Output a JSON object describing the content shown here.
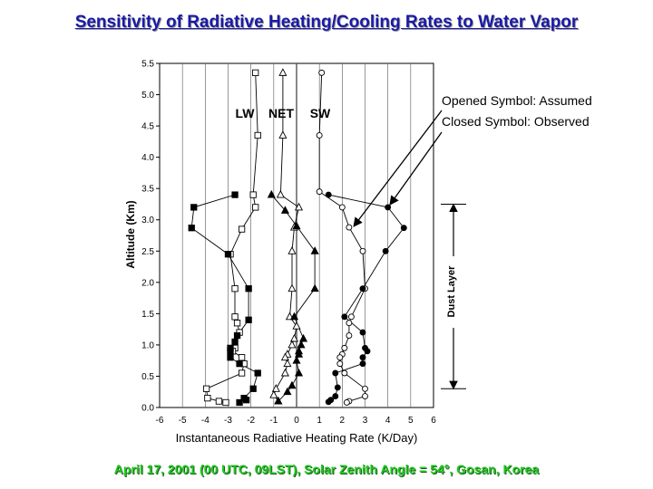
{
  "slide": {
    "title": "Sensitivity of Radiative Heating/Cooling Rates to Water Vapor",
    "footer": "April 17, 2001 (00 UTC, 09LST), Solar Zenith Angle = 54°, Gosan, Korea"
  },
  "colors": {
    "title": "#1a1aa8",
    "footer": "#22c822",
    "ink": "#000000"
  },
  "chart_data": {
    "type": "line",
    "xlabel": "Instantaneous Radiative Heating Rate (K/Day)",
    "ylabel": "Altitude (Km)",
    "xlim": [
      -6,
      6
    ],
    "ylim": [
      0,
      5.5
    ],
    "xticks": [
      "-6",
      "-5",
      "-4",
      "-3",
      "-2",
      "-1",
      "0",
      "1",
      "2",
      "3",
      "4",
      "5",
      "6"
    ],
    "yticks": [
      "0.0",
      "0.5",
      "1.0",
      "1.5",
      "2.0",
      "2.5",
      "3.0",
      "3.5",
      "4.0",
      "4.5",
      "5.0",
      "5.5"
    ],
    "grid": "vertical",
    "group_labels": [
      "LW",
      "NET",
      "SW"
    ],
    "legend": [
      "Opened Symbol: Assumed",
      "Closed Symbol: Observed"
    ],
    "dust_layer": {
      "label": "Dust Layer",
      "from": 0.3,
      "to": 3.25
    },
    "series": [
      {
        "marker": "square",
        "filled": false,
        "points": [
          [
            -1.8,
            5.35
          ],
          [
            -1.7,
            4.35
          ],
          [
            -1.9,
            3.4
          ],
          [
            -1.8,
            3.2
          ],
          [
            -2.4,
            2.85
          ],
          [
            -2.9,
            2.45
          ],
          [
            -2.7,
            1.9
          ],
          [
            -2.7,
            1.45
          ],
          [
            -2.6,
            1.35
          ],
          [
            -2.5,
            1.2
          ],
          [
            -2.7,
            0.95
          ],
          [
            -2.8,
            0.9
          ],
          [
            -2.4,
            0.8
          ],
          [
            -2.3,
            0.7
          ],
          [
            -2.4,
            0.55
          ],
          [
            -3.95,
            0.3
          ],
          [
            -3.9,
            0.15
          ],
          [
            -3.4,
            0.1
          ],
          [
            -3.1,
            0.08
          ]
        ]
      },
      {
        "marker": "square",
        "filled": true,
        "points": [
          [
            -2.7,
            3.4
          ],
          [
            -4.5,
            3.2
          ],
          [
            -4.6,
            2.87
          ],
          [
            -3.0,
            2.45
          ],
          [
            -2.1,
            1.9
          ],
          [
            -2.1,
            1.4
          ],
          [
            -2.6,
            1.15
          ],
          [
            -2.7,
            1.05
          ],
          [
            -2.9,
            0.95
          ],
          [
            -2.9,
            0.9
          ],
          [
            -2.9,
            0.8
          ],
          [
            -2.5,
            0.7
          ],
          [
            -1.7,
            0.55
          ],
          [
            -1.9,
            0.3
          ],
          [
            -2.3,
            0.15
          ],
          [
            -2.2,
            0.12
          ],
          [
            -2.5,
            0.08
          ]
        ]
      },
      {
        "marker": "triangle",
        "filled": false,
        "points": [
          [
            -0.6,
            5.35
          ],
          [
            -0.6,
            4.35
          ],
          [
            -0.7,
            3.4
          ],
          [
            0.1,
            3.2
          ],
          [
            -0.1,
            2.88
          ],
          [
            -0.2,
            2.5
          ],
          [
            -0.2,
            1.9
          ],
          [
            -0.3,
            1.45
          ],
          [
            0.0,
            1.3
          ],
          [
            -0.1,
            1.1
          ],
          [
            -0.2,
            1.0
          ],
          [
            -0.4,
            0.85
          ],
          [
            -0.5,
            0.8
          ],
          [
            -0.4,
            0.7
          ],
          [
            -0.5,
            0.55
          ],
          [
            -0.9,
            0.3
          ],
          [
            -1.0,
            0.2
          ],
          [
            -0.8,
            0.1
          ]
        ]
      },
      {
        "marker": "triangle",
        "filled": true,
        "points": [
          [
            -1.1,
            3.4
          ],
          [
            -0.5,
            3.15
          ],
          [
            0.0,
            2.9
          ],
          [
            0.8,
            2.5
          ],
          [
            0.8,
            1.9
          ],
          [
            -0.1,
            1.45
          ],
          [
            0.3,
            1.1
          ],
          [
            0.2,
            1.0
          ],
          [
            0.1,
            0.9
          ],
          [
            0.1,
            0.85
          ],
          [
            0.0,
            0.75
          ],
          [
            0.1,
            0.55
          ],
          [
            -0.2,
            0.35
          ],
          [
            -0.4,
            0.25
          ],
          [
            -0.8,
            0.1
          ]
        ]
      },
      {
        "marker": "circle",
        "filled": false,
        "points": [
          [
            1.1,
            5.35
          ],
          [
            1.0,
            4.35
          ],
          [
            1.0,
            3.45
          ],
          [
            2.0,
            3.2
          ],
          [
            2.3,
            2.88
          ],
          [
            2.9,
            2.5
          ],
          [
            3.0,
            1.9
          ],
          [
            2.4,
            1.45
          ],
          [
            2.3,
            1.35
          ],
          [
            2.3,
            1.15
          ],
          [
            2.1,
            0.95
          ],
          [
            2.0,
            0.85
          ],
          [
            1.9,
            0.8
          ],
          [
            1.9,
            0.7
          ],
          [
            2.1,
            0.55
          ],
          [
            3.0,
            0.3
          ],
          [
            3.0,
            0.18
          ],
          [
            2.3,
            0.1
          ],
          [
            2.2,
            0.08
          ]
        ]
      },
      {
        "marker": "circle",
        "filled": true,
        "points": [
          [
            1.4,
            3.4
          ],
          [
            4.0,
            3.2
          ],
          [
            4.7,
            2.87
          ],
          [
            3.9,
            2.5
          ],
          [
            2.9,
            1.9
          ],
          [
            2.1,
            1.45
          ],
          [
            2.9,
            1.2
          ],
          [
            3.0,
            0.95
          ],
          [
            3.1,
            0.9
          ],
          [
            2.9,
            0.8
          ],
          [
            2.9,
            0.7
          ],
          [
            1.7,
            0.55
          ],
          [
            1.8,
            0.32
          ],
          [
            1.7,
            0.18
          ],
          [
            1.5,
            0.12
          ],
          [
            1.4,
            0.09
          ]
        ]
      }
    ]
  }
}
